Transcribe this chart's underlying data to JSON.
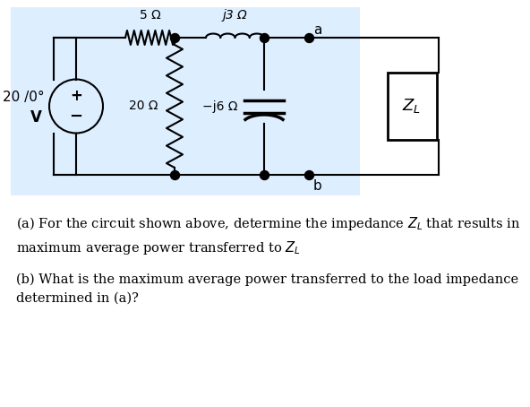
{
  "bg_color": "#ddeeff",
  "wire_color": "#000000",
  "text_color": "#000000",
  "label_5ohm": "5 Ω",
  "label_j3ohm": "j3 Ω",
  "label_20ohm": "20 Ω",
  "label_mj6ohm": "−j6 Ω",
  "label_zl": "$Z_L$",
  "label_a": "a",
  "label_b": "b",
  "src_top": "20 /0°",
  "src_bot": "V",
  "text_a": "(a) For the circuit shown above, determine the impedance $Z_L$ that results in\nmaximum average power transferred to $Z_L$",
  "text_b": "(b) What is the maximum average power transferred to the load impedance\ndetermined in (a)?",
  "fig_w": 5.92,
  "fig_h": 4.54,
  "dpi": 100
}
